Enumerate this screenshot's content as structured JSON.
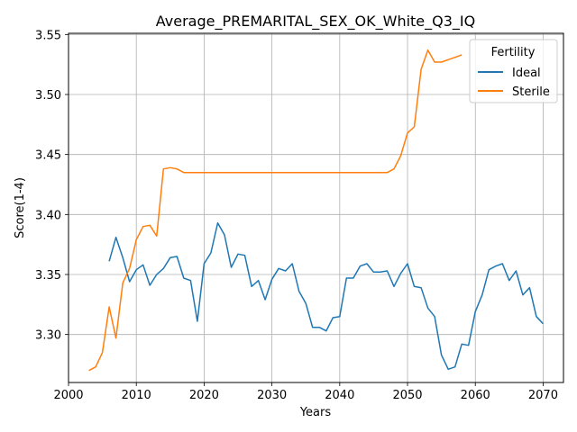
{
  "chart_data": {
    "type": "line",
    "title": "Average_PREMARITAL_SEX_OK_White_Q3_IQ",
    "xlabel": "Years",
    "ylabel": "Score(1-4)",
    "xlim": [
      2000,
      2073
    ],
    "ylim": [
      3.26,
      3.551
    ],
    "xticks": [
      2000,
      2010,
      2020,
      2030,
      2040,
      2050,
      2060,
      2070
    ],
    "yticks": [
      3.3,
      3.35,
      3.4,
      3.45,
      3.5,
      3.55
    ],
    "ytick_labels": [
      "3.30",
      "3.35",
      "3.40",
      "3.45",
      "3.50",
      "3.55"
    ],
    "grid": true,
    "legend": {
      "title": "Fertility",
      "placement": "top-right"
    },
    "series": [
      {
        "name": "Ideal",
        "color": "#1f77b4",
        "x": [
          2006,
          2007,
          2008,
          2009,
          2010,
          2011,
          2012,
          2013,
          2014,
          2015,
          2016,
          2017,
          2018,
          2019,
          2020,
          2021,
          2022,
          2023,
          2024,
          2025,
          2026,
          2027,
          2028,
          2029,
          2030,
          2031,
          2032,
          2033,
          2034,
          2035,
          2036,
          2037,
          2038,
          2039,
          2040,
          2041,
          2042,
          2043,
          2044,
          2045,
          2046,
          2047,
          2048,
          2049,
          2050,
          2051,
          2052,
          2053,
          2054,
          2055,
          2056,
          2057,
          2058,
          2059,
          2060,
          2061,
          2062,
          2063,
          2064,
          2065,
          2066,
          2067,
          2068,
          2069,
          2070
        ],
        "y": [
          3.361,
          3.381,
          3.364,
          3.344,
          3.354,
          3.358,
          3.341,
          3.35,
          3.355,
          3.364,
          3.365,
          3.347,
          3.345,
          3.311,
          3.359,
          3.368,
          3.393,
          3.383,
          3.356,
          3.367,
          3.366,
          3.34,
          3.345,
          3.329,
          3.346,
          3.355,
          3.353,
          3.359,
          3.336,
          3.326,
          3.306,
          3.306,
          3.303,
          3.314,
          3.315,
          3.347,
          3.347,
          3.357,
          3.359,
          3.352,
          3.352,
          3.353,
          3.34,
          3.351,
          3.359,
          3.34,
          3.339,
          3.322,
          3.315,
          3.283,
          3.271,
          3.273,
          3.292,
          3.291,
          3.319,
          3.333,
          3.354,
          3.357,
          3.359,
          3.345,
          3.353,
          3.333,
          3.339,
          3.315,
          3.309
        ]
      },
      {
        "name": "Sterile",
        "color": "#ff7f0e",
        "x": [
          2003,
          2004,
          2005,
          2006,
          2007,
          2008,
          2009,
          2010,
          2011,
          2012,
          2013,
          2014,
          2015,
          2016,
          2017,
          2018,
          2019,
          2020,
          2021,
          2022,
          2023,
          2024,
          2025,
          2026,
          2027,
          2028,
          2029,
          2030,
          2031,
          2032,
          2033,
          2034,
          2035,
          2036,
          2037,
          2038,
          2039,
          2040,
          2041,
          2042,
          2043,
          2044,
          2045,
          2046,
          2047,
          2048,
          2049,
          2050,
          2051,
          2052,
          2053,
          2054,
          2055,
          2056,
          2057,
          2058
        ],
        "y": [
          3.27,
          3.273,
          3.285,
          3.323,
          3.297,
          3.343,
          3.355,
          3.379,
          3.39,
          3.391,
          3.382,
          3.438,
          3.439,
          3.438,
          3.435,
          3.435,
          3.435,
          3.435,
          3.435,
          3.435,
          3.435,
          3.435,
          3.435,
          3.435,
          3.435,
          3.435,
          3.435,
          3.435,
          3.435,
          3.435,
          3.435,
          3.435,
          3.435,
          3.435,
          3.435,
          3.435,
          3.435,
          3.435,
          3.435,
          3.435,
          3.435,
          3.435,
          3.435,
          3.435,
          3.435,
          3.438,
          3.449,
          3.468,
          3.473,
          3.521,
          3.537,
          3.527,
          3.527,
          3.529,
          3.531,
          3.533
        ]
      }
    ]
  }
}
